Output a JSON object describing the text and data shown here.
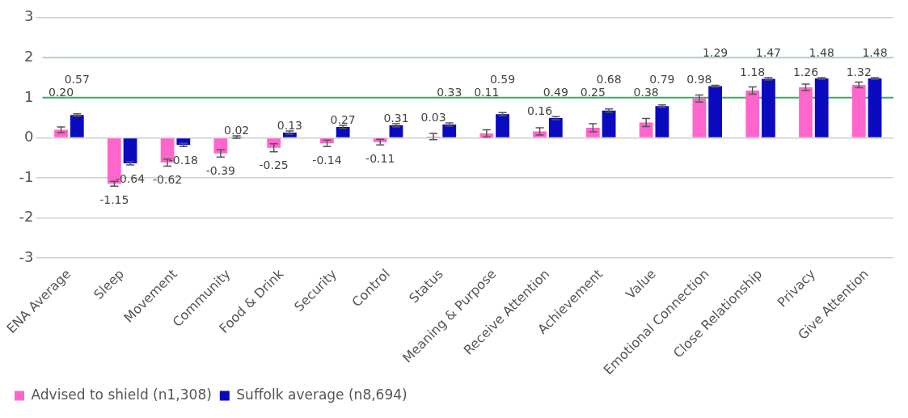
{
  "chart_data": {
    "type": "bar",
    "categories": [
      "ENA Average",
      "Sleep",
      "Movement",
      "Community",
      "Food & Drink",
      "Security",
      "Control",
      "Status",
      "Meaning & Purpose",
      "Receive Attention",
      "Achievement",
      "Value",
      "Emotional Connection",
      "Close Relationship",
      "Privacy",
      "Give Attention"
    ],
    "series": [
      {
        "name": "Advised to shield (n1,308)",
        "color": "#ff66cc",
        "values": [
          0.2,
          -1.15,
          -0.62,
          -0.39,
          -0.25,
          -0.14,
          -0.11,
          0.03,
          0.11,
          0.16,
          0.25,
          0.38,
          0.98,
          1.18,
          1.26,
          1.32
        ],
        "errors": [
          0.07,
          0.06,
          0.09,
          0.09,
          0.1,
          0.08,
          0.07,
          0.08,
          0.09,
          0.09,
          0.1,
          0.1,
          0.09,
          0.09,
          0.08,
          0.07
        ],
        "value_labels": [
          "0.20",
          "-1.15",
          "-0.62",
          "-0.39",
          "-0.25",
          "-0.14",
          "-0.11",
          "0.03",
          "0.11",
          "0.16",
          "0.25",
          "0.38",
          "0.98",
          "1.18",
          "1.26",
          "1.32"
        ]
      },
      {
        "name": "Suffolk average (n8,694)",
        "color": "#0a0abf",
        "values": [
          0.57,
          -0.64,
          -0.18,
          0.02,
          0.13,
          0.27,
          0.31,
          0.33,
          0.59,
          0.49,
          0.68,
          0.79,
          1.29,
          1.47,
          1.48,
          1.48
        ],
        "errors": [
          0.03,
          0.04,
          0.04,
          0.03,
          0.04,
          0.04,
          0.04,
          0.04,
          0.04,
          0.04,
          0.04,
          0.03,
          0.02,
          0.03,
          0.02,
          0.02
        ],
        "value_labels": [
          "0.57",
          "-0.64",
          "-0.18",
          "0.02",
          "0.13",
          "0.27",
          "0.31",
          "0.33",
          "0.59",
          "0.49",
          "0.68",
          "0.79",
          "1.29",
          "1.47",
          "1.48",
          "1.48"
        ]
      }
    ],
    "ylim": [
      -3,
      3
    ],
    "yticks": [
      -3,
      -2,
      -1,
      0,
      1,
      2,
      3
    ],
    "grid": "y",
    "legend": "bottom left",
    "ref_lines": [
      {
        "axis": "y",
        "value": 1,
        "color": "#2db35d"
      },
      {
        "axis": "y",
        "value": 2,
        "color": "#a8d8b8"
      }
    ]
  }
}
